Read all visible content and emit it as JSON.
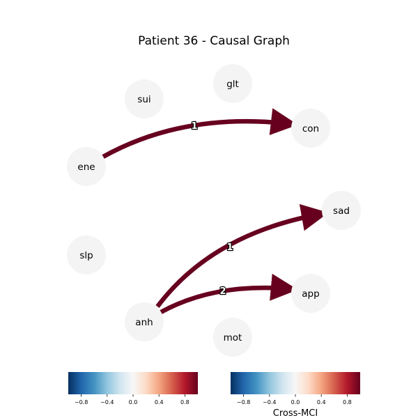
{
  "title": "Patient 36 - Causal Graph",
  "nodes": [
    {
      "id": "glt",
      "label": "glt"
    },
    {
      "id": "sui",
      "label": "sui"
    },
    {
      "id": "con",
      "label": "con"
    },
    {
      "id": "ene",
      "label": "ene"
    },
    {
      "id": "sad",
      "label": "sad"
    },
    {
      "id": "slp",
      "label": "slp"
    },
    {
      "id": "app",
      "label": "app"
    },
    {
      "id": "anh",
      "label": "anh"
    },
    {
      "id": "mot",
      "label": "mot"
    }
  ],
  "edges": [
    {
      "from": "ene",
      "to": "con",
      "label": "1"
    },
    {
      "from": "anh",
      "to": "sad",
      "label": "1"
    },
    {
      "from": "anh",
      "to": "app",
      "label": "2"
    }
  ],
  "colorbars": [
    {
      "ticks": [
        "−0.8",
        "−0.4",
        "0.0",
        "0.4",
        "0.8"
      ],
      "caption": ""
    },
    {
      "ticks": [
        "−0.8",
        "−0.4",
        "0.0",
        "0.4",
        "0.8"
      ],
      "caption": "Cross-MCI"
    }
  ],
  "colors": {
    "edge": "#67001f",
    "node_fill": "#f4f4f4",
    "cmap": [
      "#053061",
      "#2166ac",
      "#4393c3",
      "#92c5de",
      "#d1e5f0",
      "#f7f7f7",
      "#fddbc7",
      "#f4a582",
      "#d6604d",
      "#b2182b",
      "#67001f"
    ]
  }
}
